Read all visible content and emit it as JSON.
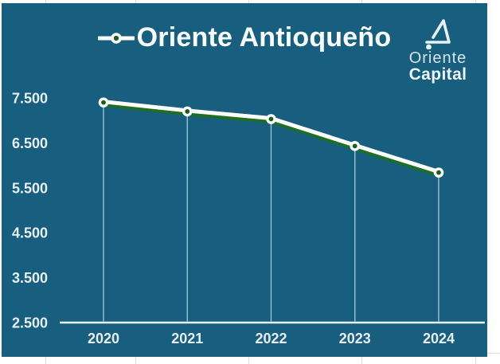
{
  "chart": {
    "title": "Oriente Antioqueño"
  },
  "logo": {
    "line1": "Oriente",
    "line2": "Capital"
  },
  "colors": {
    "chart_background": "#175E7F",
    "series_line_green": "#1E6E23",
    "series_line_white": "#FFFFFF",
    "marker_dot_green": "#15601B",
    "axis_line": "#EAF3F8",
    "label_text": "#E8EFF3",
    "drop_line": "rgba(220,238,248,0.7)"
  },
  "chart_data": {
    "type": "line",
    "title": "Oriente Antioqueño",
    "categories": [
      "2020",
      "2021",
      "2022",
      "2023",
      "2024"
    ],
    "series": [
      {
        "name": "Oriente Antioqueño",
        "values": [
          7400,
          7200,
          7030,
          6430,
          5840
        ]
      }
    ],
    "y_ticks": [
      {
        "value": 2500,
        "label": "2.500"
      },
      {
        "value": 3500,
        "label": "3.500"
      },
      {
        "value": 4500,
        "label": "4.500"
      },
      {
        "value": 5500,
        "label": "5.500"
      },
      {
        "value": 6500,
        "label": "6.500"
      },
      {
        "value": 7500,
        "label": "7.500"
      }
    ],
    "ylim": [
      2500,
      7500
    ],
    "xlabel": "",
    "ylabel": "",
    "grid": "off",
    "legend_position": "top-center-inline-with-title",
    "marker": "white-ring-with-green-dot",
    "drop_lines": true
  }
}
